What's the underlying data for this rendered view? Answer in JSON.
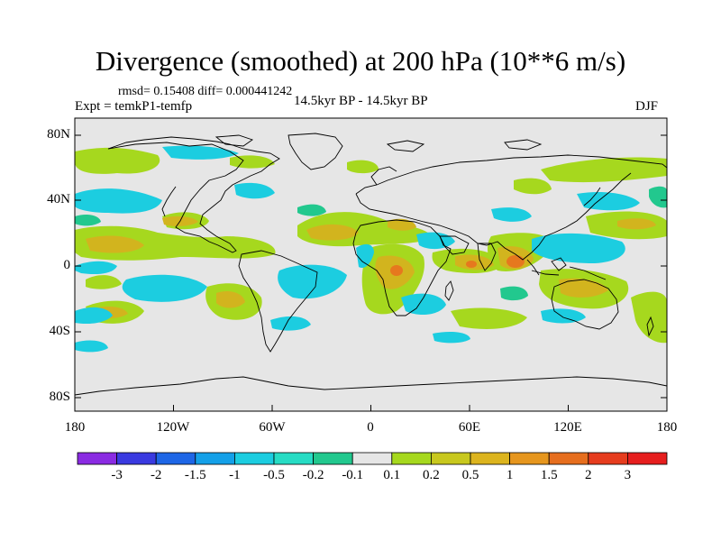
{
  "title": "Divergence (smoothed) at 200 hPa (10**6 m/s)",
  "stats": "rmsd= 0.15408  diff= 0.000441242",
  "experiment": "Expt = temkP1-temfp",
  "period": "14.5kyr BP - 14.5kyr BP",
  "season": "DJF",
  "lat_labels": [
    "80N",
    "40N",
    "0",
    "40S",
    "80S"
  ],
  "lon_labels": [
    "180",
    "120W",
    "60W",
    "0",
    "60E",
    "120E",
    "180"
  ],
  "colorbar": {
    "labels": [
      "-3",
      "-2",
      "-1.5",
      "-1",
      "-0.5",
      "-0.2",
      "-0.1",
      "0.1",
      "0.2",
      "0.5",
      "1",
      "1.5",
      "2",
      "3"
    ],
    "colors": [
      "#8a2be2",
      "#3a3ae0",
      "#1e66e6",
      "#14a0e8",
      "#1ccde0",
      "#27dcc4",
      "#22c88e",
      "#e6e6e6",
      "#a6d81e",
      "#c8c81e",
      "#dcb41e",
      "#e6961e",
      "#e66e1e",
      "#e63c1e",
      "#e61e1e"
    ]
  },
  "map_fill": {
    "background": "#e6e6e6",
    "positive": "#a6d81e",
    "positive_strong": "#d2b41e",
    "positive_peak": "#e6781e",
    "negative": "#1ccde0",
    "negative_light": "#22c88e"
  }
}
